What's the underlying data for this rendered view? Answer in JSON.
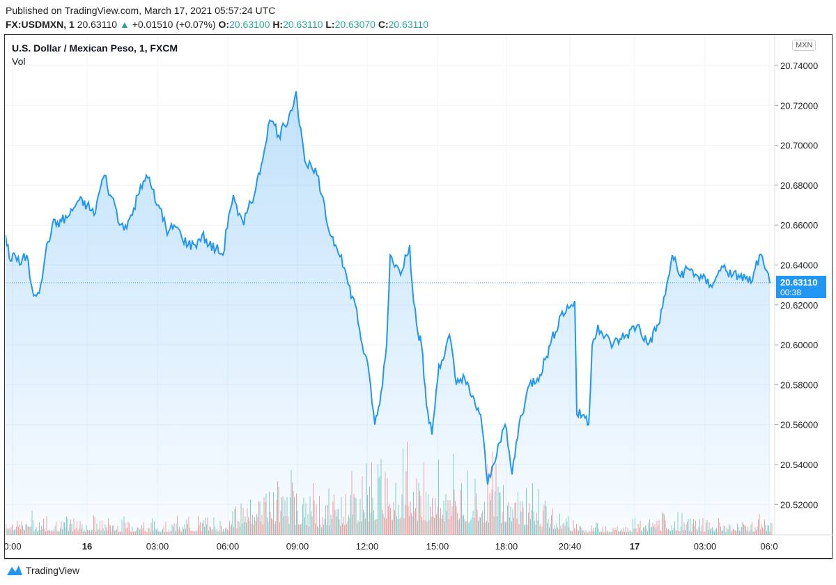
{
  "header": {
    "published": "Published on TradingView.com, March 17, 2021 05:57:24 UTC",
    "symbol": "FX:USDMXN, 1",
    "last": "20.63110",
    "change": "+0.01510 (+0.07%)",
    "o_label": "O:",
    "o": "20.63100",
    "h_label": "H:",
    "h": "20.63110",
    "l_label": "L:",
    "l": "20.63070",
    "c_label": "C:",
    "c": "20.63110"
  },
  "legend": {
    "title": "U.S. Dollar / Mexican Peso, 1, FXCM",
    "vol": "Vol"
  },
  "currency": "MXN",
  "price_label": {
    "price": "20.63110",
    "countdown": "00:38"
  },
  "brand": "TradingView",
  "colors": {
    "line": "#2196f3",
    "up": "#26a69a",
    "down": "#ef5350",
    "label_bg": "#2196f3"
  },
  "chart_data": {
    "type": "line",
    "title": "U.S. Dollar / Mexican Peso, 1, FXCM",
    "xunit": "hours since Mar 16 00:00 (display scale)",
    "ylim": [
      20.505,
      20.755
    ],
    "xlim": [
      -3.5,
      29.6
    ],
    "yticks": [
      20.52,
      20.54,
      20.56,
      20.58,
      20.6,
      20.62,
      20.64,
      20.66,
      20.68,
      20.7,
      20.72,
      20.74
    ],
    "ytick_labels": [
      "20.52000",
      "20.54000",
      "20.56000",
      "20.58000",
      "20.60000",
      "20.62000",
      "20.64000",
      "20.66000",
      "20.68000",
      "20.70000",
      "20.72000",
      "20.74000"
    ],
    "xticks": [
      {
        "t": -3.21,
        "label": "0:00",
        "bold": false
      },
      {
        "t": 0,
        "label": "16",
        "bold": true
      },
      {
        "t": 3.03,
        "label": "03:00",
        "bold": false
      },
      {
        "t": 6.06,
        "label": "06:00",
        "bold": false
      },
      {
        "t": 9.06,
        "label": "09:00",
        "bold": false
      },
      {
        "t": 12.06,
        "label": "12:00",
        "bold": false
      },
      {
        "t": 15.09,
        "label": "15:00",
        "bold": false
      },
      {
        "t": 18.06,
        "label": "18:00",
        "bold": false
      },
      {
        "t": 20.79,
        "label": "20:40",
        "bold": false
      },
      {
        "t": 23.58,
        "label": "17",
        "bold": true
      },
      {
        "t": 26.61,
        "label": "03:00",
        "bold": false
      },
      {
        "t": 29.37,
        "label": "06:0",
        "bold": false
      }
    ],
    "last_price": 20.6311,
    "series": [
      {
        "name": "USDMXN",
        "points": [
          [
            -3.51,
            20.655
          ],
          [
            -3.3,
            20.642
          ],
          [
            -3.15,
            20.646
          ],
          [
            -2.9,
            20.64
          ],
          [
            -2.6,
            20.645
          ],
          [
            -2.4,
            20.63
          ],
          [
            -2.25,
            20.625
          ],
          [
            -2.0,
            20.63
          ],
          [
            -1.8,
            20.645
          ],
          [
            -1.5,
            20.66
          ],
          [
            -1.1,
            20.662
          ],
          [
            -0.75,
            20.665
          ],
          [
            -0.4,
            20.672
          ],
          [
            0,
            20.67
          ],
          [
            0.3,
            20.665
          ],
          [
            0.6,
            20.68
          ],
          [
            0.75,
            20.685
          ],
          [
            1.0,
            20.675
          ],
          [
            1.2,
            20.67
          ],
          [
            1.4,
            20.66
          ],
          [
            1.65,
            20.66
          ],
          [
            1.95,
            20.665
          ],
          [
            2.3,
            20.68
          ],
          [
            2.55,
            20.685
          ],
          [
            2.8,
            20.678
          ],
          [
            3.0,
            20.67
          ],
          [
            3.2,
            20.668
          ],
          [
            3.45,
            20.655
          ],
          [
            3.75,
            20.66
          ],
          [
            4.05,
            20.655
          ],
          [
            4.35,
            20.65
          ],
          [
            4.65,
            20.65
          ],
          [
            4.95,
            20.655
          ],
          [
            5.25,
            20.65
          ],
          [
            5.55,
            20.648
          ],
          [
            5.85,
            20.645
          ],
          [
            6.1,
            20.665
          ],
          [
            6.3,
            20.675
          ],
          [
            6.5,
            20.665
          ],
          [
            6.75,
            20.66
          ],
          [
            7.0,
            20.672
          ],
          [
            7.2,
            20.675
          ],
          [
            7.5,
            20.69
          ],
          [
            7.8,
            20.71
          ],
          [
            8.0,
            20.712
          ],
          [
            8.25,
            20.705
          ],
          [
            8.5,
            20.71
          ],
          [
            8.7,
            20.715
          ],
          [
            9.0,
            20.727
          ],
          [
            9.15,
            20.71
          ],
          [
            9.3,
            20.7
          ],
          [
            9.45,
            20.69
          ],
          [
            9.7,
            20.688
          ],
          [
            9.9,
            20.685
          ],
          [
            10.1,
            20.675
          ],
          [
            10.35,
            20.66
          ],
          [
            10.7,
            20.65
          ],
          [
            10.95,
            20.645
          ],
          [
            11.25,
            20.63
          ],
          [
            11.55,
            20.62
          ],
          [
            11.85,
            20.6
          ],
          [
            12.15,
            20.585
          ],
          [
            12.39,
            20.56
          ],
          [
            12.6,
            20.57
          ],
          [
            12.9,
            20.6
          ],
          [
            13.05,
            20.645
          ],
          [
            13.3,
            20.64
          ],
          [
            13.5,
            20.635
          ],
          [
            13.7,
            20.645
          ],
          [
            13.89,
            20.65
          ],
          [
            14.0,
            20.63
          ],
          [
            14.19,
            20.61
          ],
          [
            14.4,
            20.6
          ],
          [
            14.61,
            20.57
          ],
          [
            14.85,
            20.555
          ],
          [
            15.15,
            20.59
          ],
          [
            15.4,
            20.595
          ],
          [
            15.6,
            20.605
          ],
          [
            15.9,
            20.58
          ],
          [
            16.2,
            20.585
          ],
          [
            16.5,
            20.575
          ],
          [
            16.95,
            20.565
          ],
          [
            17.25,
            20.53
          ],
          [
            17.5,
            20.54
          ],
          [
            17.7,
            20.55
          ],
          [
            18.0,
            20.56
          ],
          [
            18.3,
            20.535
          ],
          [
            18.6,
            20.56
          ],
          [
            19.05,
            20.58
          ],
          [
            19.5,
            20.585
          ],
          [
            19.95,
            20.6
          ],
          [
            20.4,
            20.615
          ],
          [
            20.85,
            20.62
          ],
          [
            21.0,
            20.622
          ],
          [
            21.09,
            20.565
          ],
          [
            21.39,
            20.565
          ],
          [
            21.6,
            20.56
          ],
          [
            21.75,
            20.6
          ],
          [
            22.0,
            20.61
          ],
          [
            22.2,
            20.605
          ],
          [
            22.65,
            20.6
          ],
          [
            22.95,
            20.603
          ],
          [
            23.25,
            20.605
          ],
          [
            23.7,
            20.61
          ],
          [
            24.15,
            20.6
          ],
          [
            24.6,
            20.61
          ],
          [
            24.9,
            20.625
          ],
          [
            25.2,
            20.645
          ],
          [
            25.5,
            20.635
          ],
          [
            25.9,
            20.638
          ],
          [
            26.25,
            20.635
          ],
          [
            26.85,
            20.63
          ],
          [
            27.15,
            20.635
          ],
          [
            27.45,
            20.64
          ],
          [
            27.75,
            20.634
          ],
          [
            28.05,
            20.635
          ],
          [
            28.35,
            20.633
          ],
          [
            28.65,
            20.632
          ],
          [
            28.95,
            20.645
          ],
          [
            29.2,
            20.638
          ],
          [
            29.4,
            20.631
          ]
        ]
      }
    ],
    "volume_envelope": [
      [
        -3.5,
        0.25
      ],
      [
        0,
        0.2
      ],
      [
        3,
        0.18
      ],
      [
        6,
        0.22
      ],
      [
        7,
        0.6
      ],
      [
        8.5,
        0.75
      ],
      [
        10,
        0.45
      ],
      [
        11,
        0.6
      ],
      [
        12.5,
        0.9
      ],
      [
        13.5,
        1.0
      ],
      [
        15,
        0.8
      ],
      [
        16,
        0.75
      ],
      [
        17.5,
        0.8
      ],
      [
        19,
        0.6
      ],
      [
        20.5,
        0.3
      ],
      [
        21.5,
        0.15
      ],
      [
        24,
        0.2
      ],
      [
        25,
        0.25
      ],
      [
        27,
        0.18
      ],
      [
        29.5,
        0.2
      ]
    ]
  }
}
